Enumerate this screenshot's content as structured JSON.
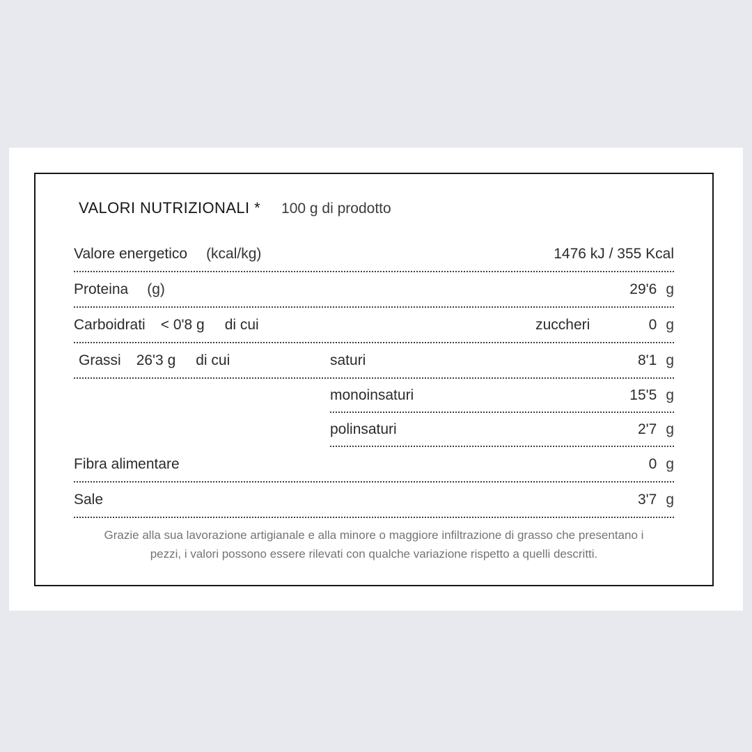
{
  "label": {
    "title": "VALORI NUTRIZIONALI *",
    "subtitle": "100 g di prodotto",
    "rows": [
      {
        "label": "Valore energetico",
        "note": "(kcal/kg)",
        "value": "1476 kJ / 355 Kcal"
      },
      {
        "label": "Proteina",
        "note": "(g)",
        "value": "29'6",
        "unit": "g"
      },
      {
        "label": "Carboidrati",
        "qty": "< 0'8 g",
        "suffix": "di cui",
        "sub_label": "zuccheri",
        "value": "0",
        "unit": "g"
      },
      {
        "label": "Grassi",
        "qty": "26'3 g",
        "suffix": "di cui",
        "mid_label": "saturi",
        "value": "8'1",
        "unit": "g"
      },
      {
        "mid_label": "monoinsaturi",
        "value": "15'5",
        "unit": "g"
      },
      {
        "mid_label": "polinsaturi",
        "value": "2'7",
        "unit": "g"
      },
      {
        "label": "Fibra alimentare",
        "value": "0",
        "unit": "g"
      },
      {
        "label": "Sale",
        "value": "3'7",
        "unit": "g"
      }
    ],
    "footnote": {
      "line1": "Grazie alla sua lavorazione artigianale e alla minore o maggiore infiltrazione di grasso che presentano i",
      "line2": "pezzi, i valori possono essere rilevati con qualche variazione rispetto a quelli descritti."
    }
  },
  "colors": {
    "page_background": "#e8e9ee",
    "card_background": "#ffffff",
    "border": "#161616",
    "text": "#2b2b2b",
    "footnote_text": "#747474"
  }
}
